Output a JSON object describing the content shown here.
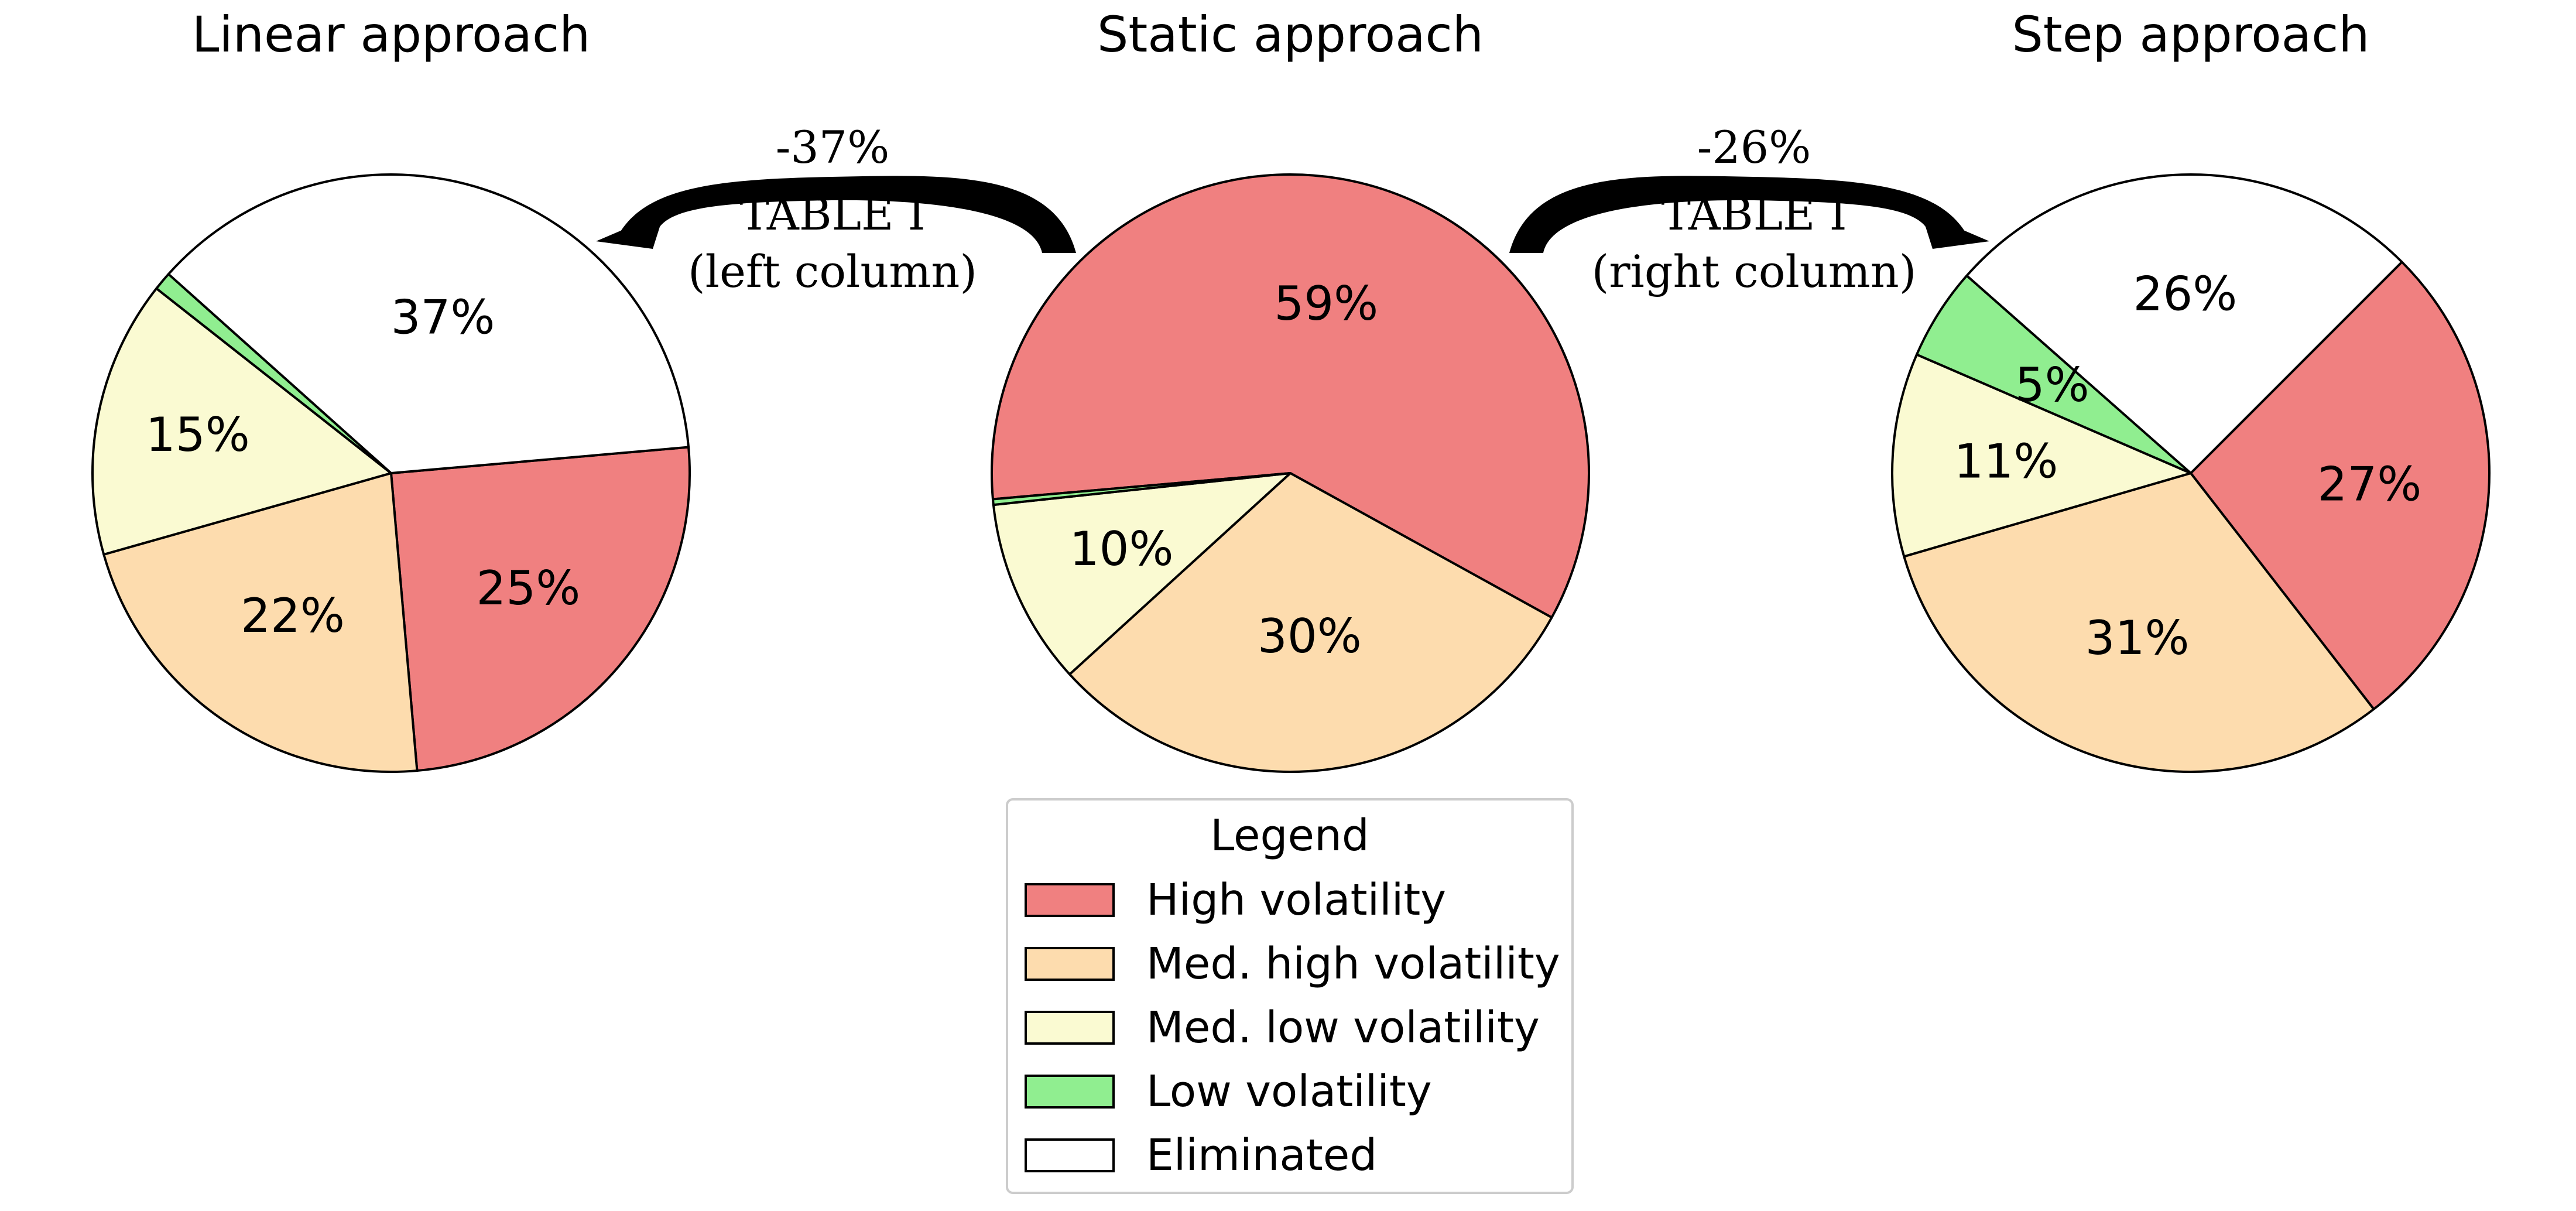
{
  "chart_data": [
    {
      "type": "pie",
      "title": "Linear approach",
      "slices": [
        {
          "label": "High volatility",
          "value": 25,
          "display": "25%",
          "color": "#F08080"
        },
        {
          "label": "Med. high volatility",
          "value": 22,
          "display": "22%",
          "color": "#FDDCAE"
        },
        {
          "label": "Med. low volatility",
          "value": 15,
          "display": "15%",
          "color": "#FAFAD2"
        },
        {
          "label": "Low volatility",
          "value": 1,
          "display": "",
          "color": "#90EE90"
        },
        {
          "label": "Eliminated",
          "value": 37,
          "display": "37%",
          "color": "#FFFFFF"
        }
      ]
    },
    {
      "type": "pie",
      "title": "Static approach",
      "slices": [
        {
          "label": "High volatility",
          "value": 59,
          "display": "59%",
          "color": "#F08080"
        },
        {
          "label": "Med. high volatility",
          "value": 30,
          "display": "30%",
          "color": "#FDDCAE"
        },
        {
          "label": "Med. low volatility",
          "value": 10,
          "display": "10%",
          "color": "#FAFAD2"
        },
        {
          "label": "Low volatility",
          "value": 0.3,
          "display": "",
          "color": "#90EE90"
        },
        {
          "label": "Eliminated",
          "value": 0,
          "display": "",
          "color": "#FFFFFF"
        }
      ]
    },
    {
      "type": "pie",
      "title": "Step approach",
      "slices": [
        {
          "label": "High volatility",
          "value": 27,
          "display": "27%",
          "color": "#F08080"
        },
        {
          "label": "Med. high volatility",
          "value": 31,
          "display": "31%",
          "color": "#FDDCAE"
        },
        {
          "label": "Med. low volatility",
          "value": 11,
          "display": "11%",
          "color": "#FAFAD2"
        },
        {
          "label": "Low volatility",
          "value": 5,
          "display": "5%",
          "color": "#90EE90"
        },
        {
          "label": "Eliminated",
          "value": 26,
          "display": "26%",
          "color": "#FFFFFF"
        }
      ]
    }
  ],
  "arrows": {
    "left": {
      "change": "-37%",
      "line1": "TABLE I",
      "line2": "(left column)"
    },
    "right": {
      "change": "-26%",
      "line1": "TABLE I",
      "line2": "(right column)"
    }
  },
  "legend": {
    "title": "Legend",
    "placement": "bottom-center",
    "items": [
      {
        "label": "High volatility",
        "color": "#F08080"
      },
      {
        "label": "Med. high volatility",
        "color": "#FDDCAE"
      },
      {
        "label": "Med. low volatility",
        "color": "#FAFAD2"
      },
      {
        "label": "Low volatility",
        "color": "#90EE90"
      },
      {
        "label": "Eliminated",
        "color": "#FFFFFF"
      }
    ]
  }
}
